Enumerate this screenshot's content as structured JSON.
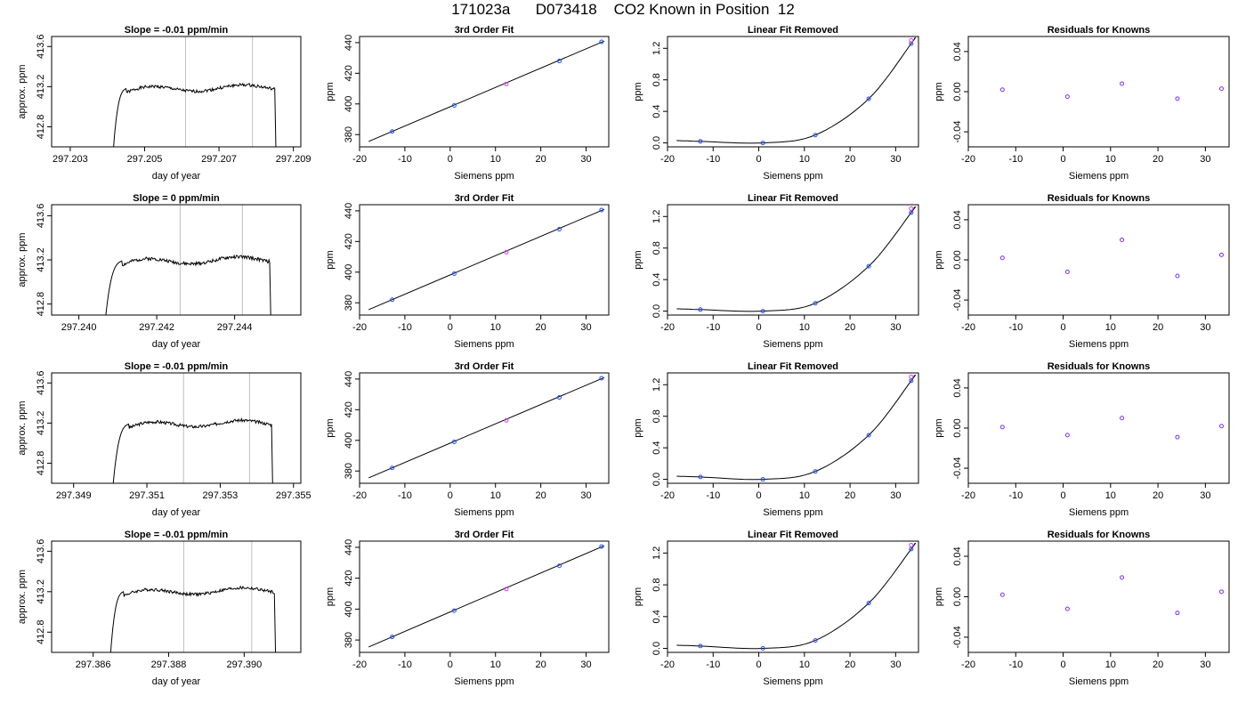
{
  "figure_title": "171023a      D073418    CO2 Known in Position  12",
  "colors": {
    "axis": "#000000",
    "trace": "#000000",
    "window_line": "#bfbfbf",
    "point_primary": "#1e4dff",
    "point_secondary": "#d33cff",
    "residual_point": "#7f2dff"
  },
  "chart_data": [
    {
      "type": "line",
      "row": 0,
      "panel": "trace",
      "title": "Slope =  -0.01  ppm/min",
      "xlabel": "day of year",
      "ylabel": "approx. ppm",
      "xlim": [
        297.2025,
        297.2092
      ],
      "ylim": [
        412.6,
        413.7
      ],
      "xticks": [
        297.203,
        297.205,
        297.207,
        297.209
      ],
      "xtick_labels": [
        "297.203",
        "297.205",
        "297.207",
        "297.209"
      ],
      "yticks": [
        412.8,
        413.2,
        413.6
      ],
      "ytick_labels": [
        "412.8",
        "413.2",
        "413.6"
      ],
      "window": [
        297.2061,
        297.2079
      ],
      "rise": [
        297.2041,
        297.2045
      ],
      "fall": [
        297.2085,
        297.20855
      ],
      "plateau": 413.18,
      "seed": 1
    },
    {
      "type": "scatter",
      "row": 0,
      "panel": "fit",
      "title": "3rd Order Fit",
      "xlabel": "Siemens ppm",
      "ylabel": "ppm",
      "xlim": [
        -20,
        35
      ],
      "ylim": [
        372,
        444
      ],
      "xticks": [
        -20,
        -10,
        0,
        10,
        20,
        30
      ],
      "yticks": [
        380,
        400,
        420,
        440
      ],
      "x": [
        -12.8,
        0.9,
        12.4,
        24.1,
        33.4
      ],
      "y": [
        382,
        399,
        413,
        428,
        440.5
      ],
      "curve": [
        [
          -18,
          375.5
        ],
        [
          34,
          441
        ]
      ]
    },
    {
      "type": "scatter",
      "row": 0,
      "panel": "linear_removed",
      "title": "Linear Fit Removed",
      "xlabel": "Siemens ppm",
      "ylabel": "ppm",
      "xlim": [
        -20,
        35
      ],
      "ylim": [
        -0.05,
        1.35
      ],
      "xticks": [
        -20,
        -10,
        0,
        10,
        20,
        30
      ],
      "yticks": [
        0,
        0.4,
        0.8,
        1.2
      ],
      "ytick_labels": [
        "0.0",
        "0.4",
        "0.8",
        "1.2"
      ],
      "x": [
        -12.8,
        0.9,
        12.4,
        24.1,
        33.4
      ],
      "y": [
        0.02,
        0,
        0.1,
        0.56,
        1.26
      ],
      "y_secondary": [
        1.3
      ],
      "x_secondary": [
        33.4
      ],
      "curve_from": -18,
      "curve_to": 34
    },
    {
      "type": "scatter",
      "row": 0,
      "panel": "residuals",
      "title": "Residuals for Knowns",
      "xlabel": "Siemens ppm",
      "ylabel": "ppm",
      "xlim": [
        -20,
        35
      ],
      "ylim": [
        -0.055,
        0.055
      ],
      "xticks": [
        -20,
        -10,
        0,
        10,
        20,
        30
      ],
      "yticks": [
        -0.04,
        0,
        0.04
      ],
      "ytick_labels": [
        "-0.04",
        "0.00",
        "0.04"
      ],
      "x": [
        -12.8,
        0.9,
        12.4,
        24.1,
        33.4
      ],
      "y": [
        0.002,
        -0.005,
        0.008,
        -0.007,
        0.003
      ]
    },
    {
      "type": "line",
      "row": 1,
      "panel": "trace",
      "title": "Slope =  0  ppm/min",
      "xlabel": "day of year",
      "ylabel": "approx. ppm",
      "xlim": [
        297.2393,
        297.2457
      ],
      "ylim": [
        412.7,
        413.7
      ],
      "xticks": [
        297.24,
        297.242,
        297.244
      ],
      "xtick_labels": [
        "297.240",
        "297.242",
        "297.244"
      ],
      "yticks": [
        412.8,
        413.2,
        413.6
      ],
      "ytick_labels": [
        "412.8",
        "413.2",
        "413.6"
      ],
      "window": [
        297.2426,
        297.2442
      ],
      "rise": [
        297.2406,
        297.2411
      ],
      "fall": [
        297.2449,
        297.24495
      ],
      "plateau": 413.19,
      "seed": 2
    },
    {
      "type": "scatter",
      "row": 1,
      "panel": "fit",
      "title": "3rd Order Fit",
      "xlabel": "Siemens ppm",
      "ylabel": "ppm",
      "xlim": [
        -20,
        35
      ],
      "ylim": [
        372,
        444
      ],
      "xticks": [
        -20,
        -10,
        0,
        10,
        20,
        30
      ],
      "yticks": [
        380,
        400,
        420,
        440
      ],
      "x": [
        -12.8,
        0.9,
        12.4,
        24.1,
        33.4
      ],
      "y": [
        382,
        399,
        413,
        428,
        440.5
      ],
      "curve": [
        [
          -18,
          375.5
        ],
        [
          34,
          441
        ]
      ]
    },
    {
      "type": "scatter",
      "row": 1,
      "panel": "linear_removed",
      "title": "Linear Fit Removed",
      "xlabel": "Siemens ppm",
      "ylabel": "ppm",
      "xlim": [
        -20,
        35
      ],
      "ylim": [
        -0.05,
        1.35
      ],
      "xticks": [
        -20,
        -10,
        0,
        10,
        20,
        30
      ],
      "yticks": [
        0,
        0.4,
        0.8,
        1.2
      ],
      "ytick_labels": [
        "0.0",
        "0.4",
        "0.8",
        "1.2"
      ],
      "x": [
        -12.8,
        0.9,
        12.4,
        24.1,
        33.4
      ],
      "y": [
        0.02,
        0,
        0.1,
        0.57,
        1.25
      ],
      "y_secondary": [
        1.3
      ],
      "x_secondary": [
        33.4
      ],
      "curve_from": -18,
      "curve_to": 34
    },
    {
      "type": "scatter",
      "row": 1,
      "panel": "residuals",
      "title": "Residuals for Knowns",
      "xlabel": "Siemens ppm",
      "ylabel": "ppm",
      "xlim": [
        -20,
        35
      ],
      "ylim": [
        -0.055,
        0.055
      ],
      "xticks": [
        -20,
        -10,
        0,
        10,
        20,
        30
      ],
      "yticks": [
        -0.04,
        0,
        0.04
      ],
      "ytick_labels": [
        "-0.04",
        "0.00",
        "0.04"
      ],
      "x": [
        -12.8,
        0.9,
        12.4,
        24.1,
        33.4
      ],
      "y": [
        0.002,
        -0.012,
        0.02,
        -0.016,
        0.005
      ]
    },
    {
      "type": "line",
      "row": 2,
      "panel": "trace",
      "title": "Slope =  -0.01  ppm/min",
      "xlabel": "day of year",
      "ylabel": "approx. ppm",
      "xlim": [
        297.3484,
        297.3552
      ],
      "ylim": [
        412.6,
        413.7
      ],
      "xticks": [
        297.349,
        297.351,
        297.353,
        297.355
      ],
      "xtick_labels": [
        "297.349",
        "297.351",
        "297.353",
        "297.355"
      ],
      "yticks": [
        412.8,
        413.2,
        413.6
      ],
      "ytick_labels": [
        "412.8",
        "413.2",
        "413.6"
      ],
      "window": [
        297.352,
        297.3538
      ],
      "rise": [
        297.35,
        297.3505
      ],
      "fall": [
        297.3544,
        297.35445
      ],
      "plateau": 413.19,
      "seed": 3
    },
    {
      "type": "scatter",
      "row": 2,
      "panel": "fit",
      "title": "3rd Order Fit",
      "xlabel": "Siemens ppm",
      "ylabel": "ppm",
      "xlim": [
        -20,
        35
      ],
      "ylim": [
        372,
        444
      ],
      "xticks": [
        -20,
        -10,
        0,
        10,
        20,
        30
      ],
      "yticks": [
        380,
        400,
        420,
        440
      ],
      "x": [
        -12.8,
        0.9,
        12.4,
        24.1,
        33.4
      ],
      "y": [
        382,
        399,
        413,
        428,
        440.5
      ],
      "curve": [
        [
          -18,
          375.5
        ],
        [
          34,
          441
        ]
      ]
    },
    {
      "type": "scatter",
      "row": 2,
      "panel": "linear_removed",
      "title": "Linear Fit Removed",
      "xlabel": "Siemens ppm",
      "ylabel": "ppm",
      "xlim": [
        -20,
        35
      ],
      "ylim": [
        -0.05,
        1.35
      ],
      "xticks": [
        -20,
        -10,
        0,
        10,
        20,
        30
      ],
      "yticks": [
        0,
        0.4,
        0.8,
        1.2
      ],
      "ytick_labels": [
        "0.0",
        "0.4",
        "0.8",
        "1.2"
      ],
      "x": [
        -12.8,
        0.9,
        12.4,
        24.1,
        33.4
      ],
      "y": [
        0.03,
        0,
        0.1,
        0.56,
        1.25
      ],
      "y_secondary": [
        1.3
      ],
      "x_secondary": [
        33.4
      ],
      "curve_from": -18,
      "curve_to": 34
    },
    {
      "type": "scatter",
      "row": 2,
      "panel": "residuals",
      "title": "Residuals for Knowns",
      "xlabel": "Siemens ppm",
      "ylabel": "ppm",
      "xlim": [
        -20,
        35
      ],
      "ylim": [
        -0.055,
        0.055
      ],
      "xticks": [
        -20,
        -10,
        0,
        10,
        20,
        30
      ],
      "yticks": [
        -0.04,
        0,
        0.04
      ],
      "ytick_labels": [
        "-0.04",
        "0.00",
        "0.04"
      ],
      "x": [
        -12.8,
        0.9,
        12.4,
        24.1,
        33.4
      ],
      "y": [
        0.001,
        -0.007,
        0.01,
        -0.009,
        0.002
      ]
    },
    {
      "type": "line",
      "row": 3,
      "panel": "trace",
      "title": "Slope =  -0.01  ppm/min",
      "xlabel": "day of year",
      "ylabel": "approx. ppm",
      "xlim": [
        297.3849,
        297.3915
      ],
      "ylim": [
        412.6,
        413.7
      ],
      "xticks": [
        297.386,
        297.388,
        297.39
      ],
      "xtick_labels": [
        "297.386",
        "297.388",
        "297.390"
      ],
      "yticks": [
        412.8,
        413.2,
        413.6
      ],
      "ytick_labels": [
        "412.8",
        "413.2",
        "413.6"
      ],
      "window": [
        297.3884,
        297.3902
      ],
      "rise": [
        297.3864,
        297.3868
      ],
      "fall": [
        297.3908,
        297.39085
      ],
      "plateau": 413.2,
      "seed": 4
    },
    {
      "type": "scatter",
      "row": 3,
      "panel": "fit",
      "title": "3rd Order Fit",
      "xlabel": "Siemens ppm",
      "ylabel": "ppm",
      "xlim": [
        -20,
        35
      ],
      "ylim": [
        372,
        444
      ],
      "xticks": [
        -20,
        -10,
        0,
        10,
        20,
        30
      ],
      "yticks": [
        380,
        400,
        420,
        440
      ],
      "x": [
        -12.8,
        0.9,
        12.4,
        24.1,
        33.4
      ],
      "y": [
        382,
        399,
        413,
        428,
        440.5
      ],
      "curve": [
        [
          -18,
          375.5
        ],
        [
          34,
          441
        ]
      ]
    },
    {
      "type": "scatter",
      "row": 3,
      "panel": "linear_removed",
      "title": "Linear Fit Removed",
      "xlabel": "Siemens ppm",
      "ylabel": "ppm",
      "xlim": [
        -20,
        35
      ],
      "ylim": [
        -0.05,
        1.35
      ],
      "xticks": [
        -20,
        -10,
        0,
        10,
        20,
        30
      ],
      "yticks": [
        0,
        0.4,
        0.8,
        1.2
      ],
      "ytick_labels": [
        "0.0",
        "0.4",
        "0.8",
        "1.2"
      ],
      "x": [
        -12.8,
        0.9,
        12.4,
        24.1,
        33.4
      ],
      "y": [
        0.03,
        0,
        0.1,
        0.57,
        1.25
      ],
      "y_secondary": [
        1.3
      ],
      "x_secondary": [
        33.4
      ],
      "curve_from": -18,
      "curve_to": 34
    },
    {
      "type": "scatter",
      "row": 3,
      "panel": "residuals",
      "title": "Residuals for Knowns",
      "xlabel": "Siemens ppm",
      "ylabel": "ppm",
      "xlim": [
        -20,
        35
      ],
      "ylim": [
        -0.055,
        0.055
      ],
      "xticks": [
        -20,
        -10,
        0,
        10,
        20,
        30
      ],
      "yticks": [
        -0.04,
        0,
        0.04
      ],
      "ytick_labels": [
        "-0.04",
        "0.00",
        "0.04"
      ],
      "x": [
        -12.8,
        0.9,
        12.4,
        24.1,
        33.4
      ],
      "y": [
        0.002,
        -0.012,
        0.019,
        -0.016,
        0.005
      ]
    }
  ]
}
